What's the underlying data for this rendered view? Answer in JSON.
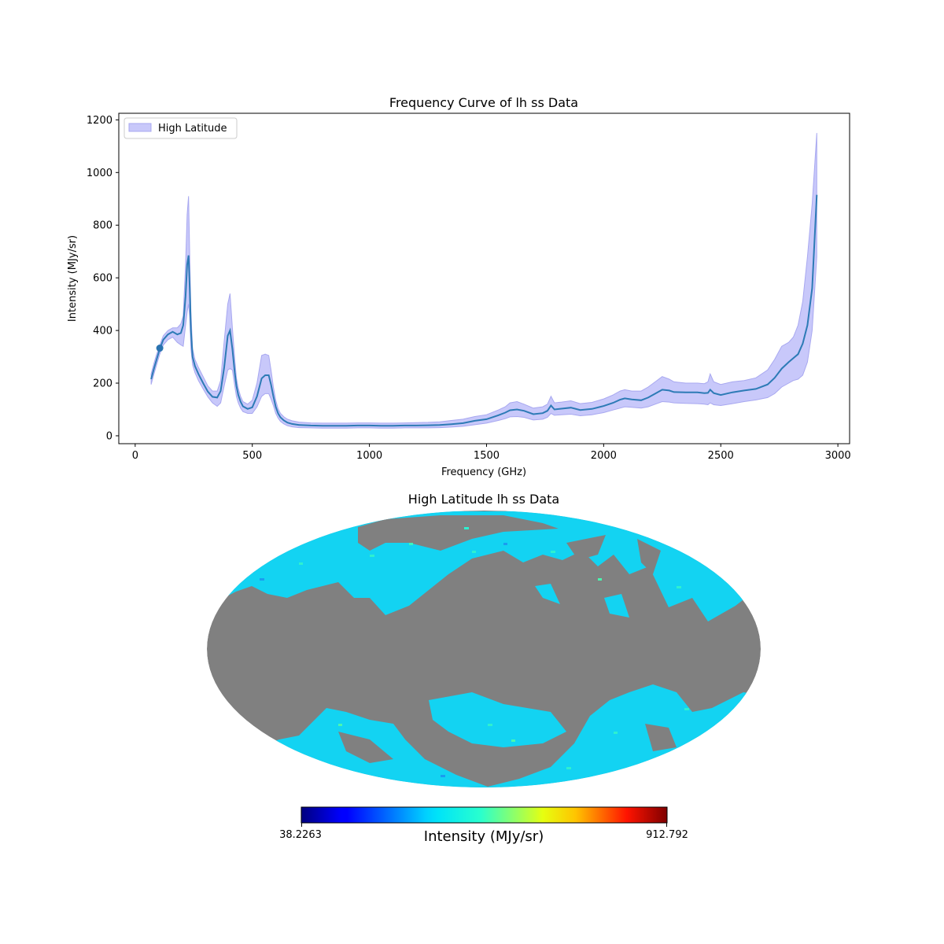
{
  "chart_data": [
    {
      "type": "line",
      "title": "Frequency Curve of lh ss Data",
      "xlabel": "Frequency (GHz)",
      "ylabel": "Intensity (MJy/sr)",
      "xlim": [
        -70,
        3050
      ],
      "ylim": [
        -30,
        1225
      ],
      "xticks": [
        0,
        500,
        1000,
        1500,
        2000,
        2500,
        3000
      ],
      "yticks": [
        0,
        200,
        400,
        600,
        800,
        1000,
        1200
      ],
      "grid": false,
      "legend": {
        "placement": "upper-left",
        "entries": [
          "High Latitude"
        ]
      },
      "colors": {
        "line": "#2d7bb6",
        "band_fill": "#c8c8fa",
        "band_edge": "#a8a8f0",
        "marker": "#2a73b0"
      },
      "series": [
        {
          "name": "High Latitude",
          "x": [
            68,
            80,
            90,
            105,
            120,
            140,
            160,
            180,
            195,
            205,
            215,
            222,
            228,
            233,
            238,
            245,
            255,
            270,
            290,
            310,
            330,
            350,
            365,
            380,
            395,
            405,
            415,
            425,
            432,
            440,
            450,
            460,
            480,
            500,
            520,
            540,
            555,
            570,
            580,
            590,
            600,
            610,
            620,
            635,
            650,
            670,
            700,
            750,
            800,
            850,
            900,
            950,
            1000,
            1050,
            1100,
            1150,
            1200,
            1250,
            1300,
            1350,
            1400,
            1450,
            1500,
            1550,
            1580,
            1600,
            1630,
            1660,
            1700,
            1740,
            1760,
            1775,
            1790,
            1820,
            1860,
            1900,
            1950,
            2000,
            2040,
            2070,
            2090,
            2120,
            2160,
            2190,
            2220,
            2250,
            2280,
            2300,
            2350,
            2400,
            2430,
            2445,
            2455,
            2470,
            2500,
            2550,
            2600,
            2650,
            2700,
            2730,
            2760,
            2790,
            2810,
            2830,
            2850,
            2870,
            2890,
            2910
          ],
          "mean": [
            215,
            255,
            285,
            330,
            365,
            385,
            395,
            385,
            390,
            420,
            530,
            650,
            685,
            560,
            400,
            300,
            265,
            235,
            200,
            168,
            148,
            145,
            170,
            260,
            380,
            400,
            330,
            240,
            190,
            155,
            130,
            112,
            102,
            108,
            150,
            218,
            230,
            230,
            195,
            150,
            110,
            85,
            70,
            58,
            50,
            45,
            41,
            39,
            38,
            38,
            38,
            39,
            39,
            38,
            38,
            39,
            39,
            40,
            41,
            44,
            48,
            57,
            63,
            78,
            88,
            97,
            100,
            95,
            82,
            86,
            95,
            115,
            100,
            103,
            107,
            98,
            102,
            113,
            125,
            137,
            142,
            138,
            135,
            145,
            160,
            175,
            172,
            166,
            165,
            165,
            162,
            163,
            175,
            162,
            155,
            165,
            172,
            178,
            195,
            220,
            255,
            280,
            295,
            310,
            350,
            420,
            560,
            915
          ],
          "upper": [
            235,
            275,
            305,
            345,
            380,
            400,
            410,
            410,
            425,
            455,
            650,
            840,
            910,
            680,
            470,
            330,
            290,
            260,
            225,
            190,
            170,
            170,
            210,
            360,
            500,
            540,
            410,
            290,
            220,
            180,
            150,
            130,
            120,
            135,
            200,
            305,
            310,
            305,
            250,
            185,
            135,
            103,
            85,
            72,
            63,
            57,
            52,
            49,
            48,
            48,
            48,
            49,
            49,
            48,
            48,
            49,
            50,
            51,
            53,
            58,
            63,
            73,
            80,
            98,
            110,
            125,
            130,
            120,
            105,
            110,
            120,
            150,
            125,
            128,
            133,
            122,
            127,
            140,
            155,
            170,
            175,
            170,
            170,
            185,
            205,
            225,
            215,
            205,
            200,
            200,
            198,
            205,
            235,
            205,
            195,
            205,
            210,
            220,
            250,
            290,
            340,
            355,
            375,
            420,
            510,
            680,
            880,
            1150
          ],
          "lower": [
            195,
            235,
            265,
            310,
            345,
            365,
            375,
            355,
            345,
            340,
            420,
            470,
            500,
            450,
            330,
            270,
            240,
            210,
            178,
            148,
            125,
            112,
            125,
            190,
            250,
            255,
            250,
            190,
            150,
            125,
            105,
            92,
            85,
            85,
            110,
            150,
            160,
            160,
            140,
            115,
            85,
            67,
            55,
            45,
            38,
            34,
            31,
            30,
            29,
            29,
            29,
            30,
            30,
            29,
            29,
            30,
            30,
            30,
            31,
            33,
            36,
            42,
            48,
            58,
            65,
            72,
            73,
            70,
            60,
            63,
            70,
            85,
            78,
            80,
            82,
            76,
            80,
            88,
            98,
            105,
            110,
            108,
            105,
            110,
            120,
            130,
            128,
            125,
            123,
            122,
            120,
            118,
            125,
            118,
            115,
            122,
            130,
            136,
            145,
            160,
            185,
            200,
            210,
            215,
            230,
            280,
            400,
            680
          ]
        }
      ],
      "markers": [
        {
          "x": 105,
          "y": 333
        }
      ]
    },
    {
      "type": "heatmap",
      "title": "High Latitude lh ss Data",
      "colormap": "jet",
      "projection": "mollweide",
      "masked_color": "#808080",
      "colorbar": {
        "min_label": "38.2263",
        "max_label": "912.792",
        "label": "Intensity (MJy/sr)",
        "min": 38.2263,
        "max": 912.792
      },
      "typical_value_fraction": 0.38
    }
  ]
}
